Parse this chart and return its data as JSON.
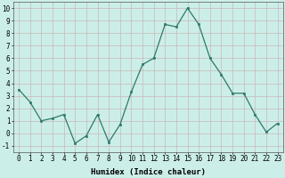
{
  "x": [
    0,
    1,
    2,
    3,
    4,
    5,
    6,
    7,
    8,
    9,
    10,
    11,
    12,
    13,
    14,
    15,
    16,
    17,
    18,
    19,
    20,
    21,
    22,
    23
  ],
  "y": [
    3.5,
    2.5,
    1.0,
    1.2,
    1.5,
    -0.8,
    -0.2,
    1.5,
    -0.7,
    0.7,
    3.3,
    5.5,
    6.0,
    8.7,
    8.5,
    10.0,
    8.7,
    6.0,
    4.7,
    3.2,
    3.2,
    1.5,
    0.1,
    0.8
  ],
  "line_color": "#2d7a6a",
  "marker_color": "#2d7a6a",
  "bg_color": "#cceee8",
  "grid_color_major": "#c8b8b8",
  "grid_color_minor": "#ddd0d0",
  "xlabel": "Humidex (Indice chaleur)",
  "ylim": [
    -1.5,
    10.5
  ],
  "xlim": [
    -0.5,
    23.5
  ],
  "yticks": [
    -1,
    0,
    1,
    2,
    3,
    4,
    5,
    6,
    7,
    8,
    9,
    10
  ],
  "xtick_labels": [
    "0",
    "1",
    "2",
    "3",
    "4",
    "5",
    "6",
    "7",
    "8",
    "9",
    "10",
    "11",
    "12",
    "13",
    "14",
    "15",
    "16",
    "17",
    "18",
    "19",
    "20",
    "21",
    "22",
    "23"
  ],
  "label_fontsize": 6.5,
  "tick_fontsize": 5.5
}
